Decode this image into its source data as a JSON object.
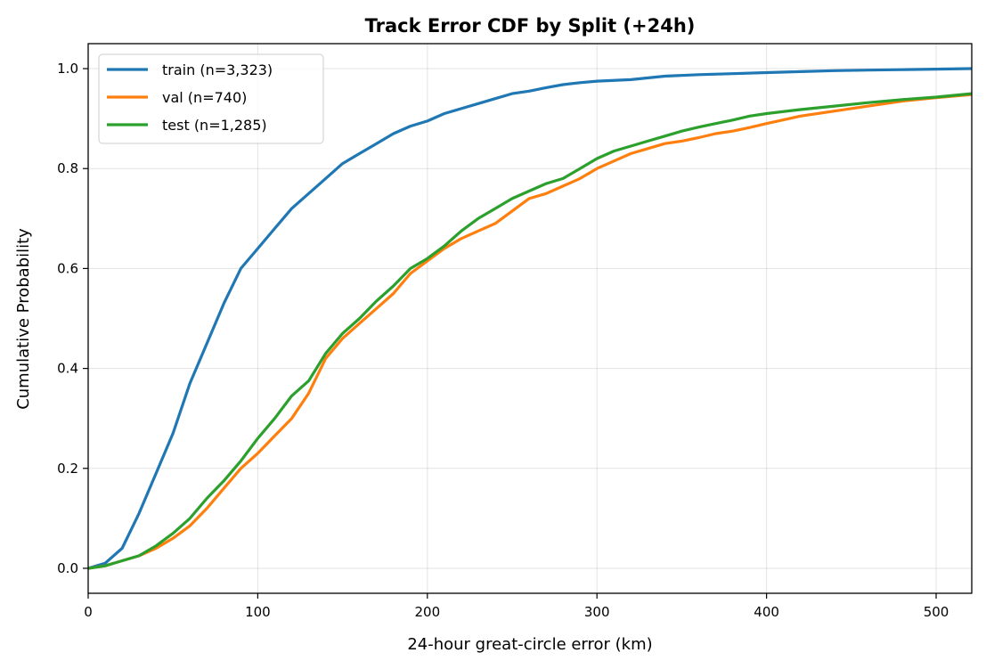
{
  "chart_data": {
    "type": "line",
    "title": "Track Error CDF by Split (+24h)",
    "xlabel": "24-hour great-circle error (km)",
    "ylabel": "Cumulative Probability",
    "xlim": [
      0,
      521
    ],
    "ylim": [
      -0.05,
      1.05
    ],
    "xticks": [
      0,
      100,
      200,
      300,
      400,
      500
    ],
    "xtick_labels": [
      "0",
      "100",
      "200",
      "300",
      "400",
      "500"
    ],
    "yticks": [
      0.0,
      0.2,
      0.4,
      0.6,
      0.8,
      1.0
    ],
    "ytick_labels": [
      "0.0",
      "0.2",
      "0.4",
      "0.6",
      "0.8",
      "1.0"
    ],
    "grid": true,
    "legend_position": "top-left",
    "series": [
      {
        "name": "train (n=3,323)",
        "color": "#1f77b4",
        "points": [
          [
            0,
            0
          ],
          [
            10,
            0.01
          ],
          [
            20,
            0.04
          ],
          [
            30,
            0.11
          ],
          [
            40,
            0.19
          ],
          [
            50,
            0.27
          ],
          [
            60,
            0.37
          ],
          [
            70,
            0.45
          ],
          [
            80,
            0.53
          ],
          [
            90,
            0.6
          ],
          [
            100,
            0.64
          ],
          [
            110,
            0.68
          ],
          [
            120,
            0.72
          ],
          [
            130,
            0.75
          ],
          [
            140,
            0.78
          ],
          [
            150,
            0.81
          ],
          [
            160,
            0.83
          ],
          [
            170,
            0.85
          ],
          [
            180,
            0.87
          ],
          [
            190,
            0.885
          ],
          [
            200,
            0.895
          ],
          [
            210,
            0.91
          ],
          [
            220,
            0.92
          ],
          [
            230,
            0.93
          ],
          [
            240,
            0.94
          ],
          [
            250,
            0.95
          ],
          [
            260,
            0.955
          ],
          [
            270,
            0.962
          ],
          [
            280,
            0.968
          ],
          [
            290,
            0.972
          ],
          [
            300,
            0.975
          ],
          [
            320,
            0.978
          ],
          [
            340,
            0.985
          ],
          [
            360,
            0.988
          ],
          [
            380,
            0.99
          ],
          [
            400,
            0.992
          ],
          [
            420,
            0.994
          ],
          [
            440,
            0.996
          ],
          [
            460,
            0.997
          ],
          [
            480,
            0.998
          ],
          [
            500,
            0.999
          ],
          [
            521,
            1.0
          ]
        ]
      },
      {
        "name": "val (n=740)",
        "color": "#ff7f0e",
        "points": [
          [
            0,
            0
          ],
          [
            10,
            0.005
          ],
          [
            20,
            0.015
          ],
          [
            30,
            0.025
          ],
          [
            40,
            0.04
          ],
          [
            50,
            0.06
          ],
          [
            60,
            0.085
          ],
          [
            70,
            0.12
          ],
          [
            80,
            0.16
          ],
          [
            90,
            0.2
          ],
          [
            100,
            0.23
          ],
          [
            110,
            0.265
          ],
          [
            120,
            0.3
          ],
          [
            130,
            0.35
          ],
          [
            140,
            0.42
          ],
          [
            150,
            0.46
          ],
          [
            160,
            0.49
          ],
          [
            170,
            0.52
          ],
          [
            180,
            0.55
          ],
          [
            190,
            0.59
          ],
          [
            200,
            0.615
          ],
          [
            210,
            0.64
          ],
          [
            220,
            0.66
          ],
          [
            230,
            0.675
          ],
          [
            240,
            0.69
          ],
          [
            250,
            0.715
          ],
          [
            260,
            0.74
          ],
          [
            270,
            0.75
          ],
          [
            280,
            0.765
          ],
          [
            290,
            0.78
          ],
          [
            300,
            0.8
          ],
          [
            310,
            0.815
          ],
          [
            320,
            0.83
          ],
          [
            330,
            0.84
          ],
          [
            340,
            0.85
          ],
          [
            350,
            0.855
          ],
          [
            360,
            0.862
          ],
          [
            370,
            0.87
          ],
          [
            380,
            0.875
          ],
          [
            390,
            0.882
          ],
          [
            400,
            0.89
          ],
          [
            420,
            0.905
          ],
          [
            440,
            0.915
          ],
          [
            460,
            0.925
          ],
          [
            480,
            0.935
          ],
          [
            500,
            0.942
          ],
          [
            521,
            0.948
          ]
        ]
      },
      {
        "name": "test (n=1,285)",
        "color": "#2ca02c",
        "points": [
          [
            0,
            0
          ],
          [
            10,
            0.005
          ],
          [
            20,
            0.015
          ],
          [
            30,
            0.025
          ],
          [
            40,
            0.045
          ],
          [
            50,
            0.07
          ],
          [
            60,
            0.1
          ],
          [
            70,
            0.14
          ],
          [
            80,
            0.175
          ],
          [
            90,
            0.215
          ],
          [
            100,
            0.26
          ],
          [
            110,
            0.3
          ],
          [
            120,
            0.345
          ],
          [
            130,
            0.375
          ],
          [
            140,
            0.43
          ],
          [
            150,
            0.47
          ],
          [
            160,
            0.5
          ],
          [
            170,
            0.535
          ],
          [
            180,
            0.565
          ],
          [
            190,
            0.6
          ],
          [
            200,
            0.62
          ],
          [
            210,
            0.645
          ],
          [
            220,
            0.675
          ],
          [
            230,
            0.7
          ],
          [
            240,
            0.72
          ],
          [
            250,
            0.74
          ],
          [
            260,
            0.755
          ],
          [
            270,
            0.77
          ],
          [
            280,
            0.78
          ],
          [
            290,
            0.8
          ],
          [
            300,
            0.82
          ],
          [
            310,
            0.835
          ],
          [
            320,
            0.845
          ],
          [
            330,
            0.855
          ],
          [
            340,
            0.865
          ],
          [
            350,
            0.875
          ],
          [
            360,
            0.883
          ],
          [
            370,
            0.89
          ],
          [
            380,
            0.897
          ],
          [
            390,
            0.905
          ],
          [
            400,
            0.91
          ],
          [
            420,
            0.918
          ],
          [
            440,
            0.925
          ],
          [
            460,
            0.932
          ],
          [
            480,
            0.938
          ],
          [
            500,
            0.943
          ],
          [
            521,
            0.95
          ]
        ]
      }
    ]
  }
}
